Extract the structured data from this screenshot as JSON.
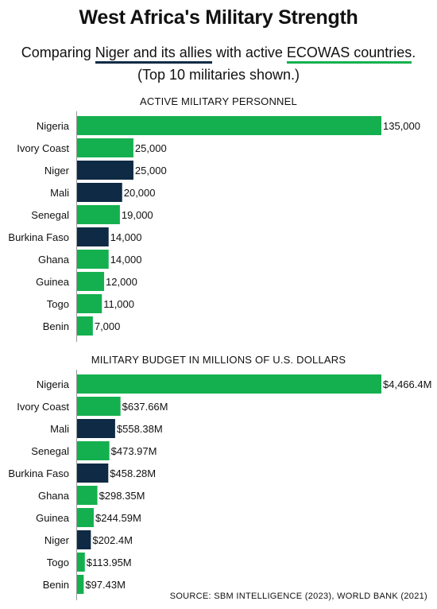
{
  "title": "West Africa's Military Strength",
  "subtitle": {
    "prefix": "Comparing ",
    "allies": "Niger and its allies",
    "middle": " with active ",
    "ecowas": "ECOWAS countries",
    "suffix": "."
  },
  "subtitle2": "(Top 10 militaries shown.)",
  "source": "SOURCE: SBM INTELLIGENCE (2023), WORLD BANK (2021)",
  "colors": {
    "ecowas": "#14b04f",
    "allies": "#0e2a44",
    "axis": "#999999"
  },
  "chart_data": [
    {
      "type": "bar",
      "orientation": "horizontal",
      "title": "ACTIVE MILITARY PERSONNEL",
      "categories": [
        "Nigeria",
        "Ivory Coast",
        "Niger",
        "Mali",
        "Senegal",
        "Burkina Faso",
        "Ghana",
        "Guinea",
        "Togo",
        "Benin"
      ],
      "values": [
        135000,
        25000,
        25000,
        20000,
        19000,
        14000,
        14000,
        12000,
        11000,
        7000
      ],
      "labels": [
        "135,000",
        "25,000",
        "25,000",
        "20,000",
        "19,000",
        "14,000",
        "14,000",
        "12,000",
        "11,000",
        "7,000"
      ],
      "groups": [
        "ecowas",
        "ecowas",
        "allies",
        "allies",
        "ecowas",
        "allies",
        "ecowas",
        "ecowas",
        "ecowas",
        "ecowas"
      ],
      "xlim": [
        0,
        135000
      ]
    },
    {
      "type": "bar",
      "orientation": "horizontal",
      "title": "MILITARY BUDGET IN MILLIONS OF U.S. DOLLARS",
      "categories": [
        "Nigeria",
        "Ivory Coast",
        "Mali",
        "Senegal",
        "Burkina Faso",
        "Ghana",
        "Guinea",
        "Niger",
        "Togo",
        "Benin"
      ],
      "values": [
        4466.4,
        637.66,
        558.38,
        473.97,
        458.28,
        298.35,
        244.59,
        202.4,
        113.95,
        97.43
      ],
      "labels": [
        "$4,466.4M",
        "$637.66M",
        "$558.38M",
        "$473.97M",
        "$458.28M",
        "$298.35M",
        "$244.59M",
        "$202.4M",
        "$113.95M",
        "$97.43M"
      ],
      "groups": [
        "ecowas",
        "ecowas",
        "allies",
        "ecowas",
        "allies",
        "ecowas",
        "ecowas",
        "allies",
        "ecowas",
        "ecowas"
      ],
      "xlim": [
        0,
        4466.4
      ]
    }
  ]
}
